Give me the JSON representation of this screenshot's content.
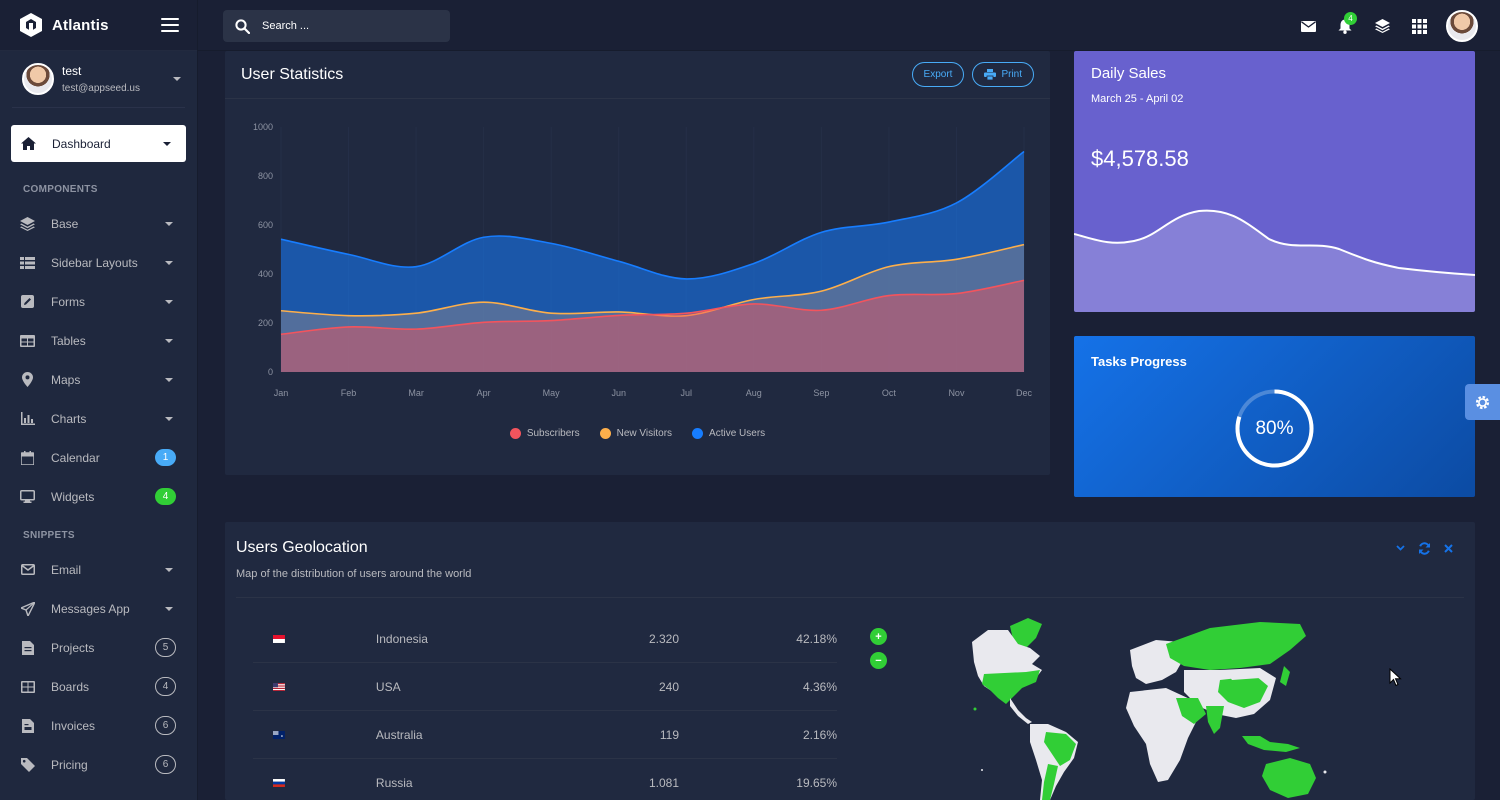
{
  "app": {
    "name": "Atlantis"
  },
  "user": {
    "name": "test",
    "email": "test@appseed.us"
  },
  "search": {
    "placeholder": "Search ..."
  },
  "topbar": {
    "notifications_count": "4"
  },
  "nav": {
    "dashboard": "Dashboard",
    "section_components": "COMPONENTS",
    "section_snippets": "SNIPPETS",
    "items": [
      {
        "label": "Base"
      },
      {
        "label": "Sidebar Layouts"
      },
      {
        "label": "Forms"
      },
      {
        "label": "Tables"
      },
      {
        "label": "Maps"
      },
      {
        "label": "Charts"
      },
      {
        "label": "Calendar",
        "badge": "1"
      },
      {
        "label": "Widgets",
        "badge": "4"
      },
      {
        "label": "Email"
      },
      {
        "label": "Messages App"
      },
      {
        "label": "Projects",
        "badge": "5"
      },
      {
        "label": "Boards",
        "badge": "4"
      },
      {
        "label": "Invoices",
        "badge": "6"
      },
      {
        "label": "Pricing",
        "badge": "6"
      }
    ]
  },
  "user_statistics": {
    "title": "User Statistics",
    "export_label": "Export",
    "print_label": "Print"
  },
  "chart_data": {
    "type": "area",
    "title": "User Statistics",
    "categories": [
      "Jan",
      "Feb",
      "Mar",
      "Apr",
      "May",
      "Jun",
      "Jul",
      "Aug",
      "Sep",
      "Oct",
      "Nov",
      "Dec"
    ],
    "ylim": [
      0,
      1000
    ],
    "yticks": [
      0,
      200,
      400,
      600,
      800,
      1000
    ],
    "series": [
      {
        "name": "Active Users",
        "color": "#177dff",
        "values": [
          542,
          480,
          430,
          550,
          525,
          452,
          380,
          443,
          570,
          612,
          690,
          900
        ]
      },
      {
        "name": "New Visitors",
        "color": "#fdaf4b",
        "values": [
          250,
          230,
          240,
          285,
          240,
          245,
          230,
          296,
          330,
          430,
          460,
          520
        ]
      },
      {
        "name": "Subscribers",
        "color": "#f3545d",
        "values": [
          154,
          184,
          175,
          203,
          210,
          231,
          240,
          278,
          252,
          312,
          320,
          374
        ]
      }
    ],
    "legend": [
      "Subscribers",
      "New Visitors",
      "Active Users"
    ]
  },
  "daily_sales": {
    "title": "Daily Sales",
    "range": "March 25 - April 02",
    "amount": "$4,578.58"
  },
  "tasks_progress": {
    "title": "Tasks Progress",
    "value": "80%",
    "fraction": 0.8
  },
  "geo": {
    "title": "Users Geolocation",
    "subtitle": "Map of the distribution of users around the world",
    "rows": [
      {
        "country": "Indonesia",
        "count": "2.320",
        "pct": "42.18%"
      },
      {
        "country": "USA",
        "count": "240",
        "pct": "4.36%"
      },
      {
        "country": "Australia",
        "count": "119",
        "pct": "2.16%"
      },
      {
        "country": "Russia",
        "count": "1.081",
        "pct": "19.65%"
      }
    ]
  },
  "colors": {
    "accent": "#48abf7",
    "success": "#31ce36",
    "sales": "#6861ce",
    "primary": "#1572e8"
  }
}
